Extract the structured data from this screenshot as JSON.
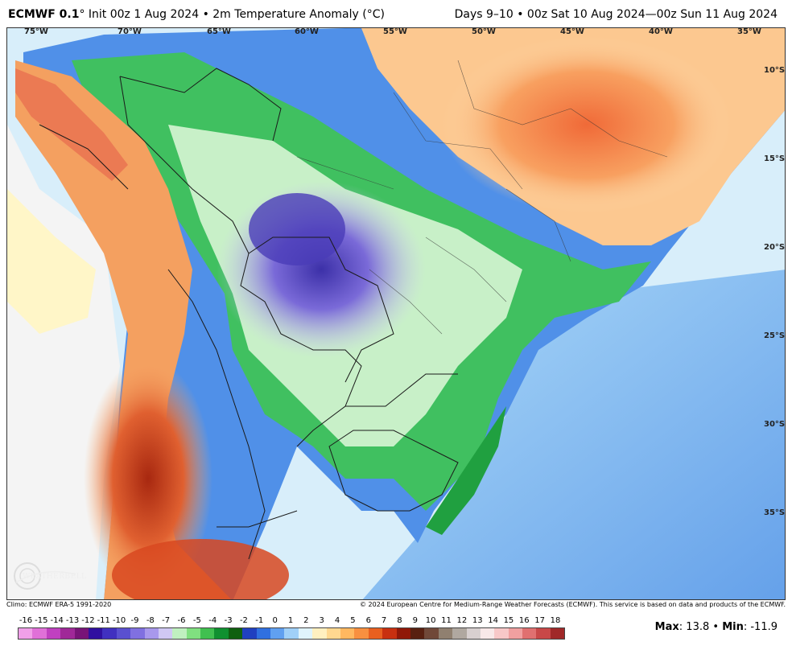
{
  "header": {
    "model": "ECMWF 0.1",
    "init": "° Init 00z 1 Aug 2024 • 2m Temperature Anomaly (°C)",
    "valid": "Days 9–10 • 00z Sat 10 Aug 2024—00z Sun 11 Aug 2024"
  },
  "map": {
    "region": "South America",
    "lon_labels": [
      "75°W",
      "70°W",
      "65°W",
      "60°W",
      "55°W",
      "50°W",
      "45°W",
      "40°W",
      "35°W"
    ],
    "lat_labels": [
      "10°S",
      "15°S",
      "20°S",
      "25°S",
      "30°S",
      "35°S"
    ],
    "logo_text": "WEATHERBELL"
  },
  "credits": {
    "climo": "Climo: ECMWF ERA-5 1991-2020",
    "copyright": "© 2024 European Centre for Medium-Range Weather Forecasts (ECMWF). This service is based on data and products of the ECMWF."
  },
  "scale": {
    "labels": [
      "-16",
      "-15",
      "-14",
      "-13",
      "-12",
      "-11",
      "-10",
      "-9",
      "-8",
      "-7",
      "-6",
      "-5",
      "-4",
      "-3",
      "-2",
      "-1",
      "0",
      "1",
      "2",
      "3",
      "4",
      "5",
      "6",
      "7",
      "8",
      "9",
      "10",
      "11",
      "12",
      "13",
      "14",
      "15",
      "16",
      "17",
      "18"
    ],
    "colors": [
      "#f0a0e8",
      "#e070d8",
      "#c040c0",
      "#a02898",
      "#781478",
      "#3010a0",
      "#4030c0",
      "#5a50d0",
      "#8070e0",
      "#a898ec",
      "#d0c8f4",
      "#c0f0c0",
      "#80e080",
      "#40c050",
      "#109030",
      "#106010",
      "#2040c0",
      "#3070e0",
      "#60a0f0",
      "#a0d0f8",
      "#e0f4fc",
      "#fff0c0",
      "#ffd890",
      "#ffb860",
      "#f89040",
      "#e86020",
      "#c83010",
      "#901808",
      "#582010",
      "#704838",
      "#908070",
      "#b0a8a0",
      "#d8d0d0",
      "#f8e8e8",
      "#f8c8c8",
      "#f0a0a0",
      "#e07070",
      "#c84848",
      "#a02828"
    ]
  },
  "stats": {
    "max_label": "Max",
    "max_value": ": 13.8",
    "sep": " • ",
    "min_label": "Min",
    "min_value": ": -11.9"
  }
}
